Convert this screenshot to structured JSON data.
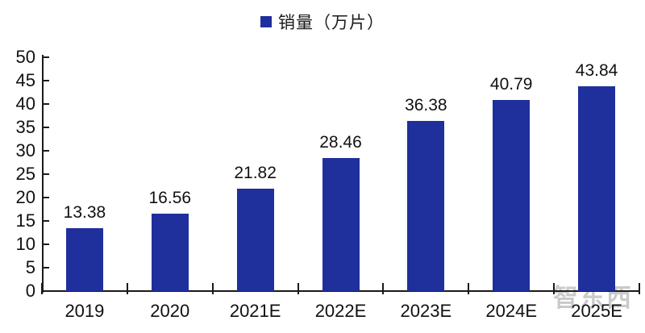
{
  "legend": {
    "label": "销量（万片）",
    "marker_color": "#1F2F9C"
  },
  "watermark": {
    "text": "智东西",
    "color": "#b9b9b9"
  },
  "chart_data": {
    "type": "bar",
    "title": "",
    "xlabel": "",
    "ylabel": "",
    "legend_entries": [
      "销量（万片）"
    ],
    "legend_position": "top-center",
    "categories": [
      "2019",
      "2020",
      "2021E",
      "2022E",
      "2023E",
      "2024E",
      "2025E"
    ],
    "series": [
      {
        "name": "销量（万片）",
        "values": [
          13.38,
          16.56,
          21.82,
          28.46,
          36.38,
          40.79,
          43.84
        ],
        "color": "#1F2F9C"
      }
    ],
    "data_labels": [
      "13.38",
      "16.56",
      "21.82",
      "28.46",
      "36.38",
      "40.79",
      "43.84"
    ],
    "ylim": [
      0,
      50
    ],
    "ytick_step": 5,
    "yticks": [
      0,
      5,
      10,
      15,
      20,
      25,
      30,
      35,
      40,
      45,
      50
    ],
    "grid": false,
    "axis_color": "#1a1a1a",
    "background": "#ffffff"
  }
}
